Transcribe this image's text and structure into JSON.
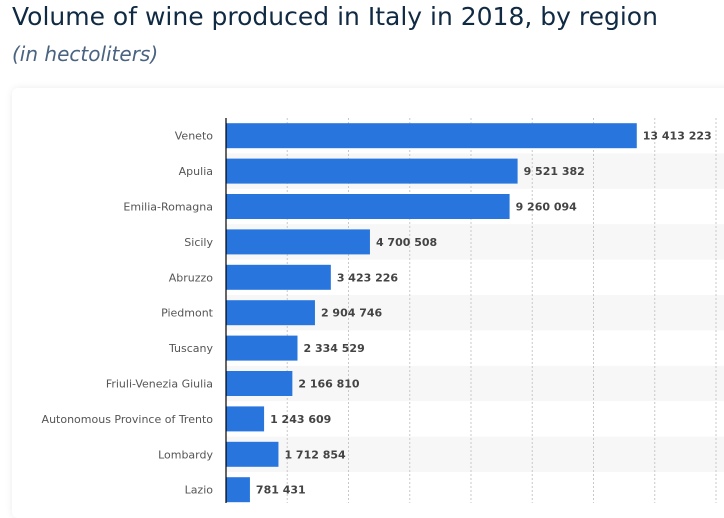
{
  "title": "Volume of wine produced in Italy in 2018, by region",
  "subtitle": "(in hectoliters)",
  "chart_data": {
    "type": "bar",
    "orientation": "horizontal",
    "title": "Volume of wine produced in Italy in 2018, by region",
    "subtitle": "(in hectoliters)",
    "xlabel": "",
    "ylabel": "",
    "xlim": [
      0,
      16000000
    ],
    "grid": true,
    "bar_color": "#2876dd",
    "categories": [
      "Veneto",
      "Apulia",
      "Emilia-Romagna",
      "Sicily",
      "Abruzzo",
      "Piedmont",
      "Tuscany",
      "Friuli-Venezia Giulia",
      "Autonomous Province of Trento",
      "Lombardy",
      "Lazio"
    ],
    "values": [
      13413223,
      9521382,
      9260094,
      4700508,
      3423226,
      2904746,
      2334529,
      2166810,
      1243609,
      1712854,
      781431
    ],
    "labels": [
      "13 413 223",
      "9 521 382",
      "9 260 094",
      "4 700 508",
      "3 423 226",
      "2 904 746",
      "2 334 529",
      "2 166 810",
      "1 243 609",
      "1 712 854",
      "781 431"
    ]
  }
}
